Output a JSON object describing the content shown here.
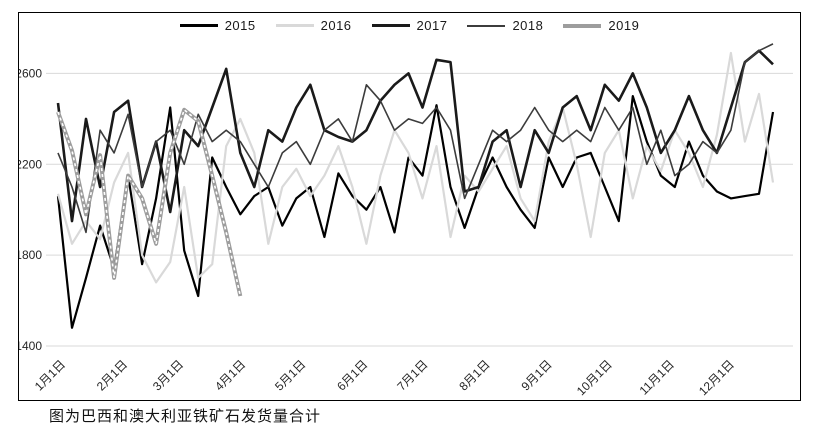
{
  "caption": "图为巴西和澳大利亚铁矿石发货量合计",
  "chart_data": {
    "type": "line",
    "title": "",
    "xlabel": "",
    "ylabel": "",
    "caption": "图为巴西和澳大利亚铁矿石发货量合计",
    "grid": "horizontal-light",
    "legend_position": "top-center",
    "gridline_color": "#d9d9d9",
    "ylim": [
      1400,
      2800
    ],
    "y_ticks": [
      1400,
      1800,
      2200,
      2600
    ],
    "x_tick_labels": [
      "1月1日",
      "2月1日",
      "3月1日",
      "4月1日",
      "5月1日",
      "6月1日",
      "7月1日",
      "8月1日",
      "9月1日",
      "10月1日",
      "11月1日",
      "12月1日"
    ],
    "x_tick_days": [
      1,
      32,
      60,
      91,
      121,
      152,
      182,
      213,
      244,
      274,
      305,
      335
    ],
    "days_per_point": 7,
    "x_unit": "week (weekly shipment totals, 万吨)",
    "series": [
      {
        "name": "2015",
        "color": "#000000",
        "width": 2.2,
        "dashed_overlay": false,
        "values": [
          2060,
          1480,
          1700,
          1930,
          1740,
          2150,
          1760,
          2050,
          2450,
          1820,
          1620,
          2230,
          2100,
          1980,
          2060,
          2100,
          1930,
          2050,
          2100,
          1880,
          2160,
          2060,
          2000,
          2100,
          1900,
          2230,
          2150,
          2460,
          2100,
          1920,
          2100,
          2230,
          2100,
          2000,
          1920,
          2230,
          2100,
          2230,
          2250,
          2100,
          1950,
          2500,
          2300,
          2150,
          2100,
          2300,
          2150,
          2080,
          2050,
          2060,
          2070,
          2430
        ]
      },
      {
        "name": "2016",
        "color": "#d9d9d9",
        "width": 2.2,
        "dashed_overlay": false,
        "values": [
          2070,
          1850,
          1950,
          1870,
          2120,
          2250,
          1800,
          1680,
          1770,
          2100,
          1700,
          1760,
          2280,
          2400,
          2250,
          1850,
          2100,
          2180,
          2060,
          2150,
          2280,
          2100,
          1850,
          2150,
          2350,
          2250,
          2050,
          2280,
          1880,
          2150,
          2080,
          2180,
          2280,
          2050,
          1950,
          2300,
          2450,
          2200,
          1880,
          2250,
          2350,
          2050,
          2280,
          2170,
          2350,
          2250,
          2100,
          2330,
          2690,
          2300,
          2510,
          2120
        ]
      },
      {
        "name": "2017",
        "color": "#1a1a1a",
        "width": 2.6,
        "dashed_overlay": false,
        "values": [
          2470,
          1950,
          2400,
          2100,
          2430,
          2480,
          2100,
          2300,
          1990,
          2350,
          2280,
          2450,
          2620,
          2250,
          2100,
          2350,
          2300,
          2450,
          2550,
          2350,
          2320,
          2300,
          2350,
          2480,
          2550,
          2600,
          2450,
          2660,
          2650,
          2080,
          2100,
          2300,
          2350,
          2100,
          2350,
          2250,
          2450,
          2500,
          2350,
          2550,
          2480,
          2600,
          2450,
          2250,
          2350,
          2500,
          2350,
          2250,
          2450,
          2650,
          2700,
          2640
        ]
      },
      {
        "name": "2018",
        "color": "#3c3c3c",
        "width": 1.6,
        "dashed_overlay": false,
        "values": [
          2250,
          2100,
          1900,
          2350,
          2250,
          2420,
          2100,
          2300,
          2350,
          2200,
          2420,
          2300,
          2350,
          2300,
          2200,
          2100,
          2250,
          2300,
          2200,
          2350,
          2400,
          2300,
          2550,
          2480,
          2350,
          2400,
          2380,
          2450,
          2350,
          2050,
          2200,
          2350,
          2300,
          2350,
          2450,
          2350,
          2300,
          2350,
          2300,
          2450,
          2350,
          2450,
          2200,
          2350,
          2150,
          2200,
          2300,
          2250,
          2350,
          2650,
          2700,
          2730
        ]
      },
      {
        "name": "2019",
        "color": "#9d9d9d",
        "width": 4,
        "dashed_overlay": true,
        "values": [
          2430,
          2260,
          1980,
          2240,
          1700,
          2150,
          2050,
          1850,
          2250,
          2440,
          2390,
          2150,
          1900,
          1620
        ]
      }
    ]
  }
}
